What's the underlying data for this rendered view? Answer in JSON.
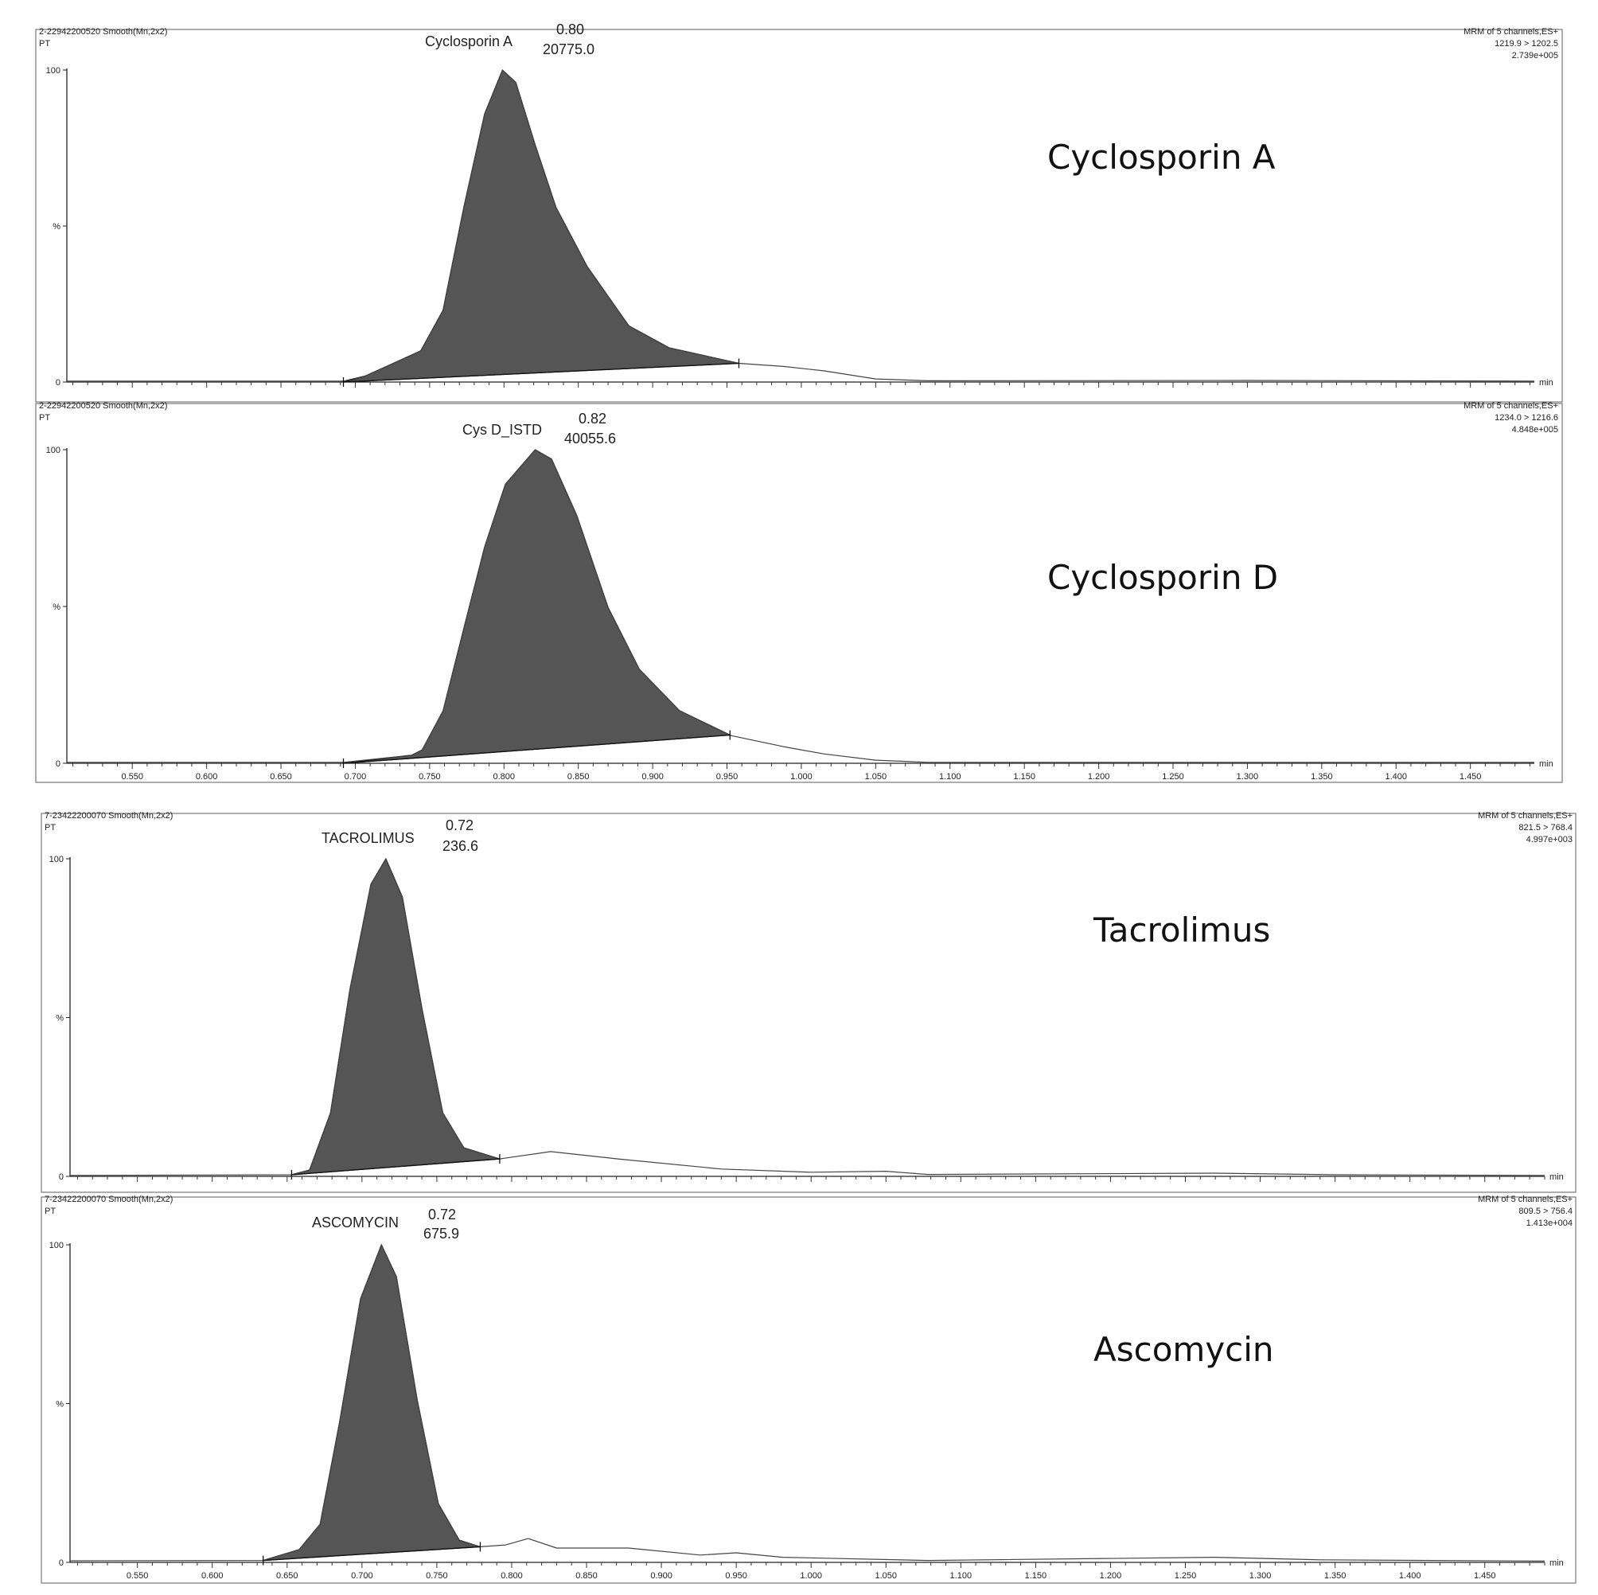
{
  "chart_data": [
    {
      "type": "area",
      "header_left": [
        "2-22942200520 Smooth(Mn,2x2)",
        "PT"
      ],
      "header_right": [
        "MRM of 5 channels,ES+",
        "1219.9 > 1202.5",
        "2.739e+005"
      ],
      "compound_label": "Cyclosporin A",
      "peak": {
        "name": "Cyclosporin A",
        "rt": "0.80",
        "area": "20775.0"
      },
      "y_ticks": [
        "100",
        "%",
        "0"
      ],
      "x_unit": "min",
      "xlim": [
        0.506,
        1.493
      ],
      "ylim": [
        0,
        100
      ],
      "x_tick_labels": [],
      "trace": [
        [
          0.506,
          0.3
        ],
        [
          0.692,
          0.3
        ],
        [
          0.707,
          2
        ],
        [
          0.744,
          10
        ],
        [
          0.759,
          23
        ],
        [
          0.773,
          56
        ],
        [
          0.787,
          86
        ],
        [
          0.799,
          100
        ],
        [
          0.808,
          96
        ],
        [
          0.821,
          76
        ],
        [
          0.835,
          56
        ],
        [
          0.856,
          37
        ],
        [
          0.884,
          18
        ],
        [
          0.911,
          11
        ],
        [
          0.958,
          6
        ],
        [
          0.988,
          5
        ],
        [
          1.015,
          3.6
        ],
        [
          1.05,
          1
        ],
        [
          1.085,
          0.4
        ],
        [
          1.3,
          0.5
        ],
        [
          1.493,
          0.3
        ]
      ],
      "integration": [
        [
          0.692,
          0
        ],
        [
          0.958,
          6
        ]
      ],
      "fill_color": "#555555"
    },
    {
      "type": "area",
      "header_left": [
        "2-22942200520 Smooth(Mn,2x2)",
        "PT"
      ],
      "header_right": [
        "MRM of 5 channels,ES+",
        "1234.0 > 1216.6",
        "4.848e+005"
      ],
      "compound_label": "Cyclosporin D",
      "peak": {
        "name": "Cys D_ISTD",
        "rt": "0.82",
        "area": "40055.6"
      },
      "y_ticks": [
        "100",
        "%",
        "0"
      ],
      "x_unit": "min",
      "xlim": [
        0.506,
        1.493
      ],
      "ylim": [
        0,
        100
      ],
      "x_tick_labels": [
        "0.550",
        "0.600",
        "0.650",
        "0.700",
        "0.750",
        "0.800",
        "0.850",
        "0.900",
        "0.950",
        "1.000",
        "1.050",
        "1.100",
        "1.150",
        "1.200",
        "1.250",
        "1.300",
        "1.350",
        "1.400",
        "1.450"
      ],
      "trace": [
        [
          0.506,
          0.3
        ],
        [
          0.692,
          0.3
        ],
        [
          0.738,
          2.6
        ],
        [
          0.745,
          4.3
        ],
        [
          0.759,
          16.7
        ],
        [
          0.773,
          43
        ],
        [
          0.787,
          69
        ],
        [
          0.801,
          89
        ],
        [
          0.821,
          100
        ],
        [
          0.832,
          97
        ],
        [
          0.849,
          79
        ],
        [
          0.87,
          49.7
        ],
        [
          0.891,
          30
        ],
        [
          0.918,
          16.8
        ],
        [
          0.952,
          8.9
        ],
        [
          0.988,
          5.3
        ],
        [
          1.015,
          3
        ],
        [
          1.05,
          1
        ],
        [
          1.085,
          0.3
        ],
        [
          1.493,
          0.3
        ]
      ],
      "integration": [
        [
          0.692,
          0
        ],
        [
          0.952,
          9
        ]
      ],
      "fill_color": "#555555"
    },
    {
      "type": "area",
      "header_left": [
        "7-23422200070 Smooth(Mn,2x2)",
        "PT"
      ],
      "header_right": [
        "MRM of 5 channels,ES+",
        "821.5 > 768.4",
        "4.997e+003"
      ],
      "compound_label": "Tacrolimus",
      "peak": {
        "name": "TACROLIMUS",
        "rt": "0.72",
        "area": "236.6"
      },
      "y_ticks": [
        "100",
        "%",
        "0"
      ],
      "x_unit": "min",
      "xlim": [
        0.505,
        1.49
      ],
      "ylim": [
        0,
        100
      ],
      "x_tick_labels": [],
      "trace": [
        [
          0.505,
          0.3
        ],
        [
          0.653,
          0.5
        ],
        [
          0.665,
          2
        ],
        [
          0.679,
          20
        ],
        [
          0.692,
          59
        ],
        [
          0.706,
          92
        ],
        [
          0.716,
          100
        ],
        [
          0.727,
          88
        ],
        [
          0.74,
          53
        ],
        [
          0.754,
          20
        ],
        [
          0.768,
          9
        ],
        [
          0.792,
          5.5
        ],
        [
          0.826,
          7.8
        ],
        [
          0.871,
          5.5
        ],
        [
          0.94,
          2.3
        ],
        [
          1.0,
          1.3
        ],
        [
          1.05,
          1.6
        ],
        [
          1.078,
          0.6
        ],
        [
          1.27,
          1
        ],
        [
          1.35,
          0.5
        ],
        [
          1.49,
          0.3
        ]
      ],
      "integration": [
        [
          0.653,
          0.5
        ],
        [
          0.792,
          5.5
        ]
      ],
      "fill_color": "#555555"
    },
    {
      "type": "area",
      "header_left": [
        "7-23422200070 Smooth(Mn,2x2)",
        "PT"
      ],
      "header_right": [
        "MRM of 5 channels,ES+",
        "809.5 > 756.4",
        "1.413e+004"
      ],
      "compound_label": "Ascomycin",
      "peak": {
        "name": "ASCOMYCIN",
        "rt": "0.72",
        "area": "675.9"
      },
      "y_ticks": [
        "100",
        "%",
        "0"
      ],
      "x_unit": "min",
      "xlim": [
        0.505,
        1.49
      ],
      "ylim": [
        0,
        100
      ],
      "x_tick_labels": [
        "0.550",
        "0.600",
        "0.650",
        "0.700",
        "0.750",
        "0.800",
        "0.850",
        "0.900",
        "0.950",
        "1.000",
        "1.050",
        "1.100",
        "1.150",
        "1.200",
        "1.250",
        "1.300",
        "1.350",
        "1.400",
        "1.450"
      ],
      "trace": [
        [
          0.505,
          0.5
        ],
        [
          0.634,
          0.6
        ],
        [
          0.658,
          4
        ],
        [
          0.672,
          12
        ],
        [
          0.685,
          44
        ],
        [
          0.699,
          83
        ],
        [
          0.713,
          100
        ],
        [
          0.723,
          90
        ],
        [
          0.737,
          51
        ],
        [
          0.751,
          18.5
        ],
        [
          0.765,
          7
        ],
        [
          0.779,
          4.9
        ],
        [
          0.796,
          5.5
        ],
        [
          0.811,
          7.5
        ],
        [
          0.83,
          4.5
        ],
        [
          0.878,
          4.5
        ],
        [
          0.926,
          2.3
        ],
        [
          0.95,
          3
        ],
        [
          0.981,
          1.6
        ],
        [
          1.078,
          0.6
        ],
        [
          1.27,
          1.6
        ],
        [
          1.34,
          0.8
        ],
        [
          1.49,
          0.4
        ]
      ],
      "integration": [
        [
          0.634,
          0.6
        ],
        [
          0.779,
          4.9
        ]
      ],
      "fill_color": "#555555"
    }
  ]
}
